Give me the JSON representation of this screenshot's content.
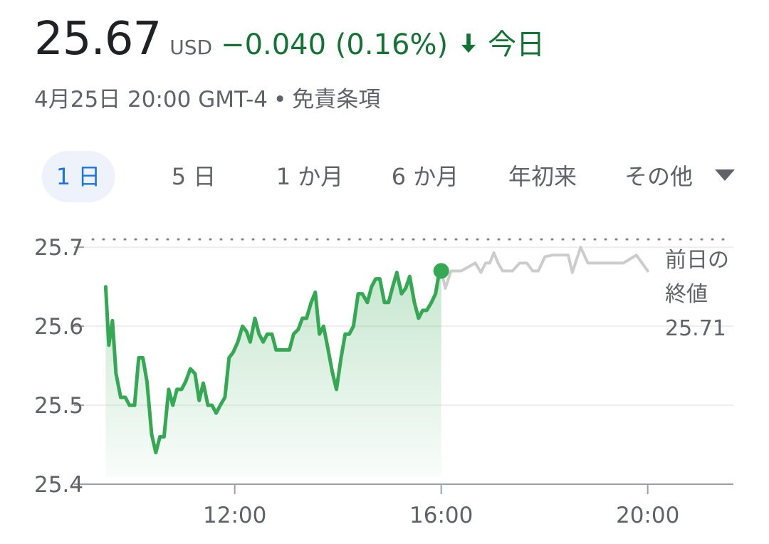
{
  "header": {
    "price": "25.67",
    "currency": "USD",
    "change": "−0.040 (0.16%)",
    "period": "今日",
    "timestamp": "4月25日 20:00 GMT-4",
    "separator": "•",
    "disclaimer": "免責条項"
  },
  "tabs": {
    "items": [
      "1 日",
      "5 日",
      "1 か月",
      "6 か月",
      "年初来",
      "その他"
    ],
    "selected": 0
  },
  "chart_data": {
    "type": "line",
    "xlim": [
      9.08,
      21.66
    ],
    "xticks": [
      {
        "value": 12,
        "label": "12:00"
      },
      {
        "value": 16,
        "label": "16:00"
      },
      {
        "value": 20,
        "label": "20:00"
      }
    ],
    "ylim": [
      25.4,
      25.72
    ],
    "yticks": [
      25.4,
      25.5,
      25.6,
      25.7
    ],
    "grid": true,
    "previous_close": 25.71,
    "previous_close_label": [
      "前日の",
      "終値"
    ],
    "previous_close_value_label": "25.71",
    "series": [
      {
        "color": "#34a853",
        "area": true,
        "marker_last": true,
        "x": [
          9.5,
          9.56,
          9.63,
          9.7,
          9.79,
          9.88,
          9.96,
          10.06,
          10.14,
          10.22,
          10.3,
          10.39,
          10.47,
          10.55,
          10.63,
          10.72,
          10.8,
          10.88,
          10.97,
          11.05,
          11.14,
          11.23,
          11.31,
          11.39,
          11.48,
          11.56,
          11.64,
          11.72,
          11.81,
          11.89,
          11.97,
          12.06,
          12.15,
          12.23,
          12.3,
          12.39,
          12.47,
          12.55,
          12.63,
          12.72,
          12.8,
          12.88,
          12.97,
          13.06,
          13.14,
          13.23,
          13.31,
          13.39,
          13.48,
          13.56,
          13.64,
          13.72,
          13.81,
          13.89,
          13.97,
          14.06,
          14.14,
          14.22,
          14.3,
          14.39,
          14.47,
          14.57,
          14.65,
          14.73,
          14.81,
          14.9,
          14.98,
          15.06,
          15.14,
          15.23,
          15.31,
          15.39,
          15.48,
          15.56,
          15.64,
          15.72,
          15.81,
          15.89,
          15.94,
          16.0
        ],
        "values": [
          25.65,
          25.576,
          25.607,
          25.54,
          25.51,
          25.51,
          25.5,
          25.5,
          25.56,
          25.56,
          25.53,
          25.463,
          25.44,
          25.46,
          25.46,
          25.52,
          25.5,
          25.52,
          25.52,
          25.53,
          25.546,
          25.54,
          25.506,
          25.528,
          25.5,
          25.5,
          25.49,
          25.5,
          25.51,
          25.56,
          25.567,
          25.58,
          25.6,
          25.593,
          25.58,
          25.61,
          25.59,
          25.58,
          25.59,
          25.59,
          25.57,
          25.57,
          25.57,
          25.57,
          25.59,
          25.596,
          25.61,
          25.61,
          25.63,
          25.643,
          25.59,
          25.6,
          25.57,
          25.542,
          25.52,
          25.56,
          25.59,
          25.59,
          25.6,
          25.641,
          25.641,
          25.63,
          25.65,
          25.66,
          25.66,
          25.63,
          25.63,
          25.65,
          25.668,
          25.641,
          25.648,
          25.663,
          25.63,
          25.61,
          25.62,
          25.62,
          25.63,
          25.641,
          25.66,
          25.67
        ]
      },
      {
        "color": "#cccccc",
        "area": false,
        "marker_last": false,
        "x": [
          16.0,
          16.08,
          16.19,
          16.39,
          16.66,
          16.77,
          16.86,
          16.94,
          17.02,
          17.1,
          17.19,
          17.38,
          17.52,
          17.66,
          17.77,
          17.88,
          18.01,
          18.15,
          18.46,
          18.54,
          18.7,
          18.84,
          19.53,
          19.78,
          20.0
        ],
        "values": [
          25.67,
          25.648,
          25.67,
          25.67,
          25.68,
          25.668,
          25.68,
          25.68,
          25.693,
          25.68,
          25.67,
          25.67,
          25.68,
          25.68,
          25.67,
          25.67,
          25.688,
          25.69,
          25.69,
          25.668,
          25.7,
          25.68,
          25.68,
          25.69,
          25.67
        ]
      }
    ]
  }
}
